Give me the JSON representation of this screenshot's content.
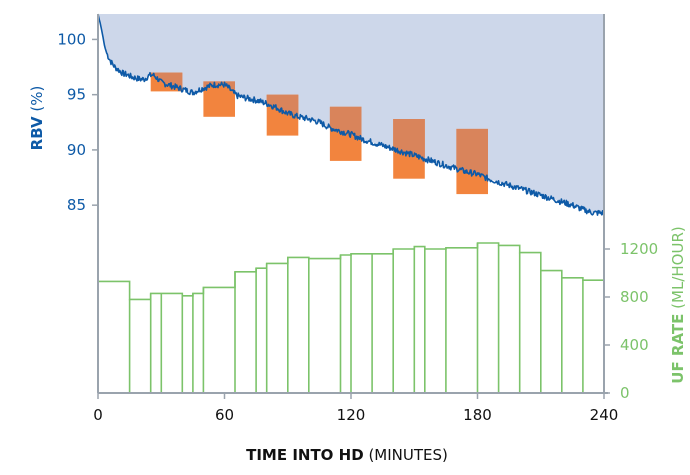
{
  "chart_data": {
    "type": "line",
    "x": {
      "label_bold": "TIME INTO HD",
      "label_unit": "(MINUTES)",
      "range": [
        0,
        240
      ],
      "ticks": [
        0,
        60,
        120,
        180,
        240
      ],
      "tick_labels": [
        "0",
        "60",
        "120",
        "180",
        "240"
      ]
    },
    "y_left": {
      "label_bold": "RBV",
      "label_unit": "(%)",
      "range": [
        82.3,
        102.3
      ],
      "ticks": [
        85,
        90,
        95,
        100
      ],
      "tick_labels": [
        "85",
        "90",
        "95",
        "100"
      ]
    },
    "y_right": {
      "label_bold": "UF RATE",
      "label_unit": "(ML/HOUR)",
      "range": [
        0,
        1400
      ],
      "ticks": [
        0,
        400,
        800,
        1200
      ],
      "tick_labels": [
        "0",
        "400",
        "800",
        "1200"
      ]
    },
    "rbv_series": {
      "x": [
        0,
        1,
        2,
        3,
        4,
        6,
        8,
        10,
        12,
        14,
        16,
        18,
        20,
        22,
        24,
        26,
        28,
        30,
        35,
        40,
        45,
        50,
        55,
        60,
        62,
        64,
        66,
        70,
        75,
        80,
        85,
        90,
        95,
        100,
        105,
        110,
        115,
        120,
        125,
        130,
        135,
        140,
        145,
        150,
        155,
        160,
        165,
        170,
        175,
        180,
        185,
        190,
        195,
        200,
        205,
        210,
        215,
        220,
        225,
        230,
        235,
        240
      ],
      "y": [
        102.3,
        101.5,
        100.6,
        99.5,
        98.8,
        98.0,
        97.5,
        97.2,
        96.9,
        96.8,
        96.6,
        96.5,
        96.4,
        96.4,
        96.7,
        96.8,
        96.5,
        96.1,
        95.8,
        95.5,
        95.2,
        95.6,
        95.9,
        95.9,
        95.6,
        95.2,
        94.9,
        94.7,
        94.5,
        94.2,
        93.8,
        93.3,
        93.0,
        92.8,
        92.5,
        92.0,
        91.7,
        91.4,
        91.0,
        90.7,
        90.4,
        90.1,
        89.8,
        89.5,
        89.2,
        88.9,
        88.6,
        88.3,
        88.0,
        87.8,
        87.4,
        87.1,
        86.8,
        86.5,
        86.2,
        85.9,
        85.6,
        85.3,
        85.0,
        84.6,
        84.3,
        84.3
      ]
    },
    "uf_steps": {
      "starts": [
        0,
        15,
        25,
        30,
        40,
        45,
        50,
        65,
        75,
        80,
        90,
        100,
        115,
        120,
        130,
        140,
        150,
        155,
        165,
        180,
        190,
        200,
        210,
        220,
        230
      ],
      "values": [
        930,
        780,
        830,
        830,
        810,
        830,
        880,
        1010,
        1040,
        1080,
        1130,
        1120,
        1150,
        1160,
        1160,
        1200,
        1220,
        1200,
        1210,
        1250,
        1230,
        1170,
        1020,
        960,
        940
      ],
      "end": 240
    },
    "target_boxes": [
      {
        "x0": 25,
        "x1": 40,
        "y_top": 97.0,
        "y_bottom": 95.3
      },
      {
        "x0": 50,
        "x1": 65,
        "y_top": 96.2,
        "y_bottom": 93.0
      },
      {
        "x0": 80,
        "x1": 95,
        "y_top": 95.0,
        "y_bottom": 91.3
      },
      {
        "x0": 110,
        "x1": 125,
        "y_top": 93.9,
        "y_bottom": 89.0
      },
      {
        "x0": 140,
        "x1": 155,
        "y_top": 92.8,
        "y_bottom": 87.4
      },
      {
        "x0": 170,
        "x1": 185,
        "y_top": 91.9,
        "y_bottom": 86.0
      }
    ],
    "colors": {
      "rbv_line": "#0e5aa7",
      "area_fill": "#cdd7ea",
      "uf_line": "#7cc36a",
      "box_fill": "#f2843e",
      "box_overlap": "#d9845b",
      "axis": "#9aa3ad"
    }
  }
}
